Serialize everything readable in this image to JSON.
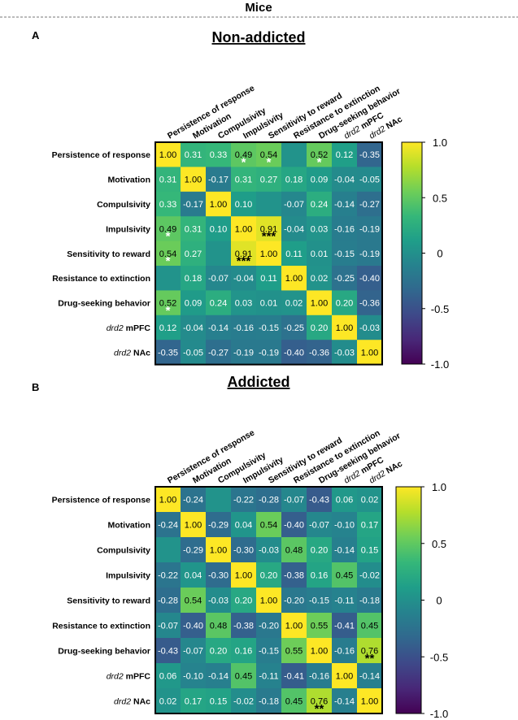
{
  "header": {
    "title": "Mice"
  },
  "colormap": {
    "stops": [
      "#440154",
      "#482878",
      "#3e4989",
      "#31688e",
      "#26828e",
      "#1f9e89",
      "#35b779",
      "#6ece58",
      "#b5de2b",
      "#fde725"
    ]
  },
  "chart_data": [
    {
      "type": "heatmap",
      "panel_letter": "A",
      "title": "Non-addicted",
      "row_labels": [
        [
          "Persistence of response"
        ],
        [
          "Motivation"
        ],
        [
          "Compulsivity"
        ],
        [
          "Impulsivity"
        ],
        [
          "Sensitivity to reward"
        ],
        [
          "Resistance to extinction"
        ],
        [
          "Drug-seeking behavior"
        ],
        [
          "drd2",
          " mPFC"
        ],
        [
          "drd2",
          " NAc"
        ]
      ],
      "col_labels": [
        [
          "Persistence of response"
        ],
        [
          "Motivation"
        ],
        [
          "Compulsivity"
        ],
        [
          "Impulsivity"
        ],
        [
          "Sensitivity to reward"
        ],
        [
          "Resistance to extinction"
        ],
        [
          "Drug-seeking behavior"
        ],
        [
          "drd2",
          " mPFC"
        ],
        [
          "drd2",
          " NAc"
        ]
      ],
      "values": [
        [
          1.0,
          0.31,
          0.33,
          0.49,
          0.54,
          0.02,
          0.52,
          0.12,
          -0.35
        ],
        [
          0.31,
          1.0,
          -0.17,
          0.31,
          0.27,
          0.18,
          0.09,
          -0.04,
          -0.05
        ],
        [
          0.33,
          -0.17,
          1.0,
          0.1,
          0.02,
          -0.07,
          0.24,
          -0.14,
          -0.27
        ],
        [
          0.49,
          0.31,
          0.1,
          1.0,
          0.91,
          -0.04,
          0.03,
          -0.16,
          -0.19
        ],
        [
          0.54,
          0.27,
          0.02,
          0.91,
          1.0,
          0.11,
          0.01,
          -0.15,
          -0.19
        ],
        [
          0.02,
          0.18,
          -0.07,
          -0.04,
          0.11,
          1.0,
          0.02,
          -0.25,
          -0.4
        ],
        [
          0.52,
          0.09,
          0.24,
          0.03,
          0.01,
          0.02,
          1.0,
          0.2,
          -0.36
        ],
        [
          0.12,
          -0.04,
          -0.14,
          -0.16,
          -0.15,
          -0.25,
          0.2,
          1.0,
          -0.03
        ],
        [
          -0.35,
          -0.05,
          -0.27,
          -0.19,
          -0.19,
          -0.4,
          -0.36,
          -0.03,
          1.0
        ]
      ],
      "cell_labels": [
        [
          "1.00",
          "0.31",
          "0.33",
          "0.49",
          "0.54",
          "",
          "0.52",
          "0.12",
          "-0.35"
        ],
        [
          "0.31",
          "1.00",
          "-0.17",
          "0.31",
          "0.27",
          "0.18",
          "0.09",
          "-0.04",
          "-0.05"
        ],
        [
          "0.33",
          "-0.17",
          "1.00",
          "0.10",
          "",
          "-0.07",
          "0.24",
          "-0.14",
          "-0.27"
        ],
        [
          "0.49",
          "0.31",
          "0.10",
          "1.00",
          "0.91",
          "-0.04",
          "0.03",
          "-0.16",
          "-0.19"
        ],
        [
          "0.54",
          "0.27",
          "",
          "0.91",
          "1.00",
          "0.11",
          "0.01",
          "-0.15",
          "-0.19"
        ],
        [
          "",
          "0.18",
          "-0.07",
          "-0.04",
          "0.11",
          "1.00",
          "0.02",
          "-0.25",
          "-0.40"
        ],
        [
          "0.52",
          "0.09",
          "0.24",
          "0.03",
          "0.01",
          "0.02",
          "1.00",
          "0.20",
          "-0.36"
        ],
        [
          "0.12",
          "-0.04",
          "-0.14",
          "-0.16",
          "-0.15",
          "-0.25",
          "0.20",
          "1.00",
          "-0.03"
        ],
        [
          "-0.35",
          "-0.05",
          "-0.27",
          "-0.19",
          "-0.19",
          "-0.40",
          "-0.36",
          "-0.03",
          "1.00"
        ]
      ],
      "significance": [
        {
          "row": 0,
          "col": 3,
          "mark": "*",
          "color": "#ffffff"
        },
        {
          "row": 0,
          "col": 4,
          "mark": "*",
          "color": "#ffffff"
        },
        {
          "row": 0,
          "col": 6,
          "mark": "*",
          "color": "#ffffff"
        },
        {
          "row": 3,
          "col": 0,
          "mark": "*",
          "color": "#ffffff"
        },
        {
          "row": 3,
          "col": 4,
          "mark": "***",
          "color": "#000000"
        },
        {
          "row": 4,
          "col": 0,
          "mark": "*",
          "color": "#ffffff"
        },
        {
          "row": 4,
          "col": 3,
          "mark": "***",
          "color": "#000000"
        },
        {
          "row": 6,
          "col": 0,
          "mark": "*",
          "color": "#ffffff"
        }
      ],
      "colorbar": {
        "min": -1.0,
        "max": 1.0,
        "ticks": [
          "1.0",
          "0.5",
          "0",
          "-0.5",
          "-1.0"
        ]
      }
    },
    {
      "type": "heatmap",
      "panel_letter": "B",
      "title": "Addicted",
      "row_labels": [
        [
          "Persistence of response"
        ],
        [
          "Motivation"
        ],
        [
          "Compulsivity"
        ],
        [
          "Impulsivity"
        ],
        [
          "Sensitivity to reward"
        ],
        [
          "Resistance to extinction"
        ],
        [
          "Drug-seeking behavior"
        ],
        [
          "drd2",
          " mPFC"
        ],
        [
          "drd2",
          " NAc"
        ]
      ],
      "col_labels": [
        [
          "Persistence of response"
        ],
        [
          "Motivation"
        ],
        [
          "Compulsivity"
        ],
        [
          "Impulsivity"
        ],
        [
          "Sensitivity to reward"
        ],
        [
          "Resistance to extinction"
        ],
        [
          "Drug-seeking behavior"
        ],
        [
          "drd2",
          " mPFC"
        ],
        [
          "drd2",
          " NAc"
        ]
      ],
      "values": [
        [
          1.0,
          -0.24,
          0.02,
          -0.22,
          -0.28,
          -0.07,
          -0.43,
          0.06,
          0.02
        ],
        [
          -0.24,
          1.0,
          -0.29,
          0.04,
          0.54,
          -0.4,
          -0.07,
          -0.1,
          0.17
        ],
        [
          0.02,
          -0.29,
          1.0,
          -0.3,
          -0.03,
          0.48,
          0.2,
          -0.14,
          0.15
        ],
        [
          -0.22,
          0.04,
          -0.3,
          1.0,
          0.2,
          -0.38,
          0.16,
          0.45,
          -0.02
        ],
        [
          -0.28,
          0.54,
          -0.03,
          0.2,
          1.0,
          -0.2,
          -0.15,
          -0.11,
          -0.18
        ],
        [
          -0.07,
          -0.4,
          0.48,
          -0.38,
          -0.2,
          1.0,
          0.55,
          -0.41,
          0.45
        ],
        [
          -0.43,
          -0.07,
          0.2,
          0.16,
          -0.15,
          0.55,
          1.0,
          -0.16,
          0.76
        ],
        [
          0.06,
          -0.1,
          -0.14,
          0.45,
          -0.11,
          -0.41,
          -0.16,
          1.0,
          -0.14
        ],
        [
          0.02,
          0.17,
          0.15,
          -0.02,
          -0.18,
          0.45,
          0.76,
          -0.14,
          1.0
        ]
      ],
      "cell_labels": [
        [
          "1.00",
          "-0.24",
          "",
          "-0.22",
          "-0.28",
          "-0.07",
          "-0.43",
          "0.06",
          "0.02"
        ],
        [
          "-0.24",
          "1.00",
          "-0.29",
          "0.04",
          "0.54",
          "-0.40",
          "-0.07",
          "-0.10",
          "0.17"
        ],
        [
          "",
          "-0.29",
          "1.00",
          "-0.30",
          "-0.03",
          "0.48",
          "0.20",
          "-0.14",
          "0.15"
        ],
        [
          "-0.22",
          "0.04",
          "-0.30",
          "1.00",
          "0.20",
          "-0.38",
          "0.16",
          "0.45",
          "-0.02"
        ],
        [
          "-0.28",
          "0.54",
          "-0.03",
          "0.20",
          "1.00",
          "-0.20",
          "-0.15",
          "-0.11",
          "-0.18"
        ],
        [
          "-0.07",
          "-0.40",
          "0.48",
          "-0.38",
          "-0.20",
          "1.00",
          "0.55",
          "-0.41",
          "0.45"
        ],
        [
          "-0.43",
          "-0.07",
          "0.20",
          "0.16",
          "-0.15",
          "0.55",
          "1.00",
          "-0.16",
          "0.76"
        ],
        [
          "0.06",
          "-0.10",
          "-0.14",
          "0.45",
          "-0.11",
          "-0.41",
          "-0.16",
          "1.00",
          "-0.14"
        ],
        [
          "0.02",
          "0.17",
          "0.15",
          "-0.02",
          "-0.18",
          "0.45",
          "0.76",
          "-0.14",
          "1.00"
        ]
      ],
      "significance": [
        {
          "row": 6,
          "col": 8,
          "mark": "**",
          "color": "#000000"
        },
        {
          "row": 8,
          "col": 6,
          "mark": "**",
          "color": "#000000"
        }
      ],
      "colorbar": {
        "min": -1.0,
        "max": 1.0,
        "ticks": [
          "1.0",
          "0.5",
          "0",
          "-0.5",
          "-1.0"
        ]
      }
    }
  ]
}
